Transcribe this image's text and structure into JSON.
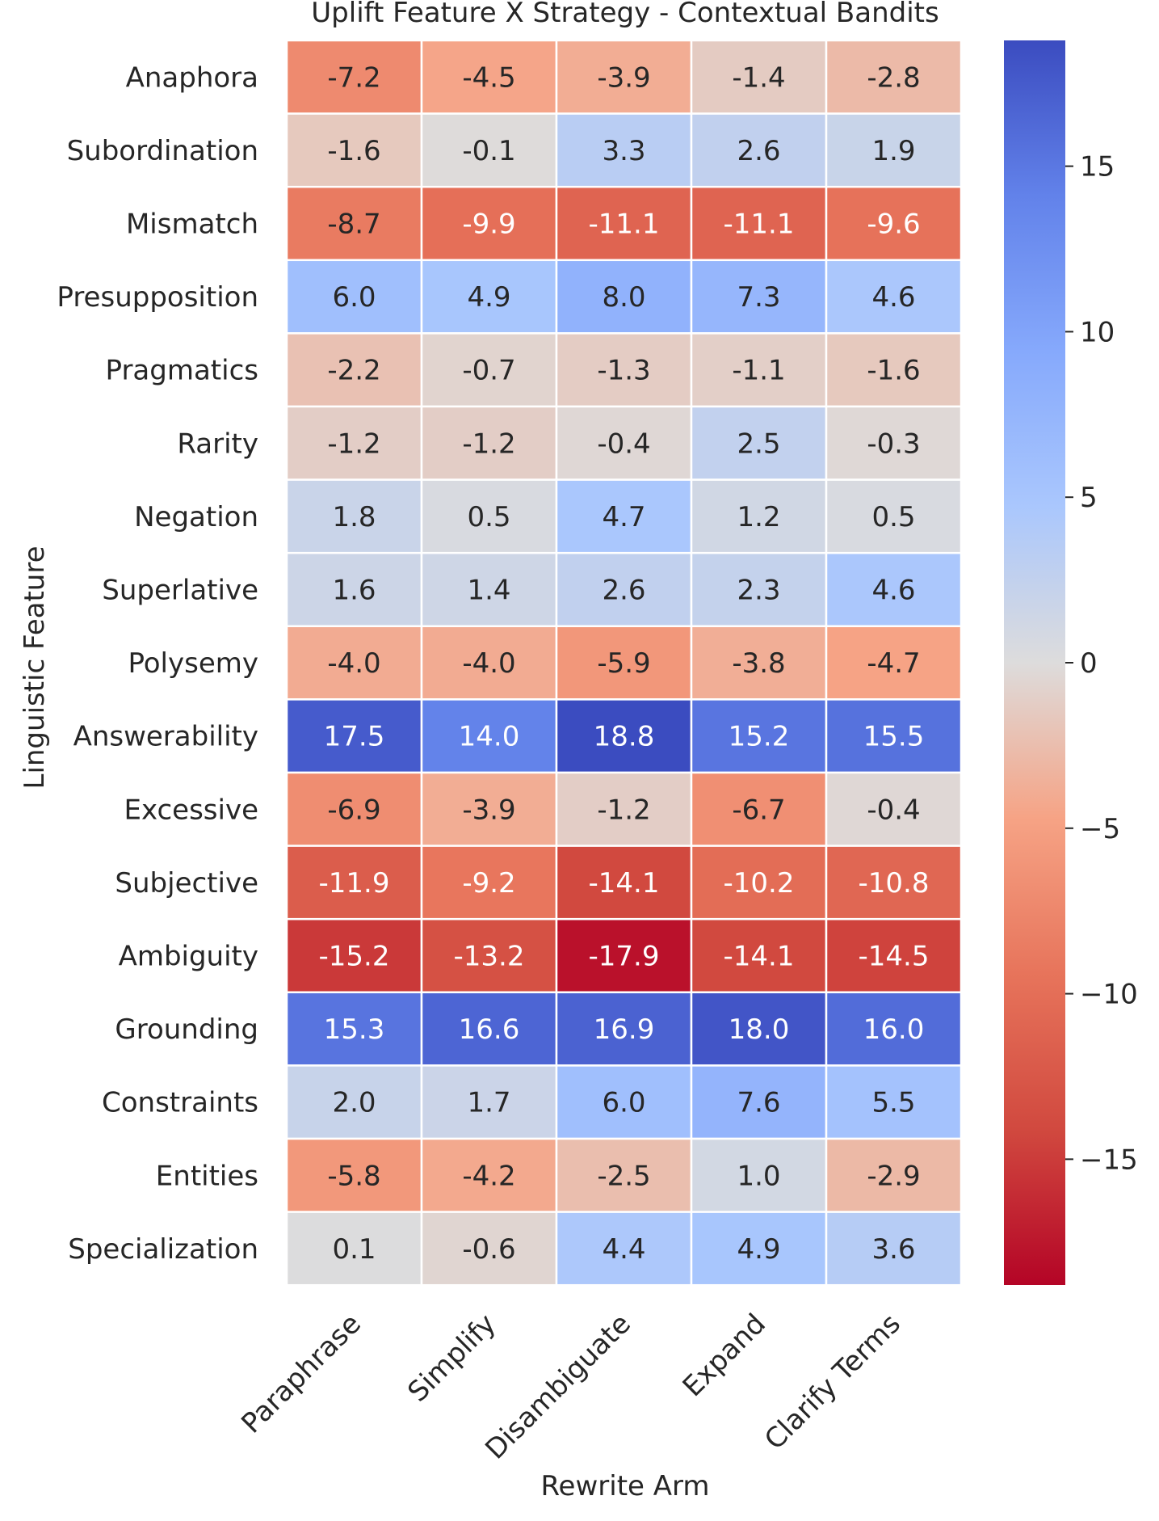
{
  "chart_data": {
    "type": "heatmap",
    "title": "Uplift Feature X Strategy - Contextual Bandits",
    "xlabel": "Rewrite Arm",
    "ylabel": "Linguistic Feature",
    "columns": [
      "Paraphrase",
      "Simplify",
      "Disambiguate",
      "Expand",
      "Clarify Terms"
    ],
    "rows": [
      "Anaphora",
      "Subordination",
      "Mismatch",
      "Presupposition",
      "Pragmatics",
      "Rarity",
      "Negation",
      "Superlative",
      "Polysemy",
      "Answerability",
      "Excessive",
      "Subjective",
      "Ambiguity",
      "Grounding",
      "Constraints",
      "Entities",
      "Specialization"
    ],
    "values": [
      [
        -7.2,
        -4.5,
        -3.9,
        -1.4,
        -2.8
      ],
      [
        -1.6,
        -0.1,
        3.3,
        2.6,
        1.9
      ],
      [
        -8.7,
        -9.9,
        -11.1,
        -11.1,
        -9.6
      ],
      [
        6.0,
        4.9,
        8.0,
        7.3,
        4.6
      ],
      [
        -2.2,
        -0.7,
        -1.3,
        -1.1,
        -1.6
      ],
      [
        -1.2,
        -1.2,
        -0.4,
        2.5,
        -0.3
      ],
      [
        1.8,
        0.5,
        4.7,
        1.2,
        0.5
      ],
      [
        1.6,
        1.4,
        2.6,
        2.3,
        4.6
      ],
      [
        -4.0,
        -4.0,
        -5.9,
        -3.8,
        -4.7
      ],
      [
        17.5,
        14.0,
        18.8,
        15.2,
        15.5
      ],
      [
        -6.9,
        -3.9,
        -1.2,
        -6.7,
        -0.4
      ],
      [
        -11.9,
        -9.2,
        -14.1,
        -10.2,
        -10.8
      ],
      [
        -15.2,
        -13.2,
        -17.9,
        -14.1,
        -14.5
      ],
      [
        15.3,
        16.6,
        16.9,
        18.0,
        16.0
      ],
      [
        2.0,
        1.7,
        6.0,
        7.6,
        5.5
      ],
      [
        -5.8,
        -4.2,
        -2.5,
        1.0,
        -2.9
      ],
      [
        0.1,
        -0.6,
        4.4,
        4.9,
        3.6
      ]
    ],
    "value_format": "0.1f",
    "colormap": "coolwarm",
    "vmin": -18.8,
    "vmax": 18.8,
    "colorbar_ticks": [
      15,
      10,
      5,
      0,
      -5,
      -10,
      -15
    ],
    "colorbar_tick_labels": [
      "15",
      "10",
      "5",
      "0",
      "−5",
      "−10",
      "−15"
    ],
    "grid": false,
    "legend": "colorbar-right"
  }
}
